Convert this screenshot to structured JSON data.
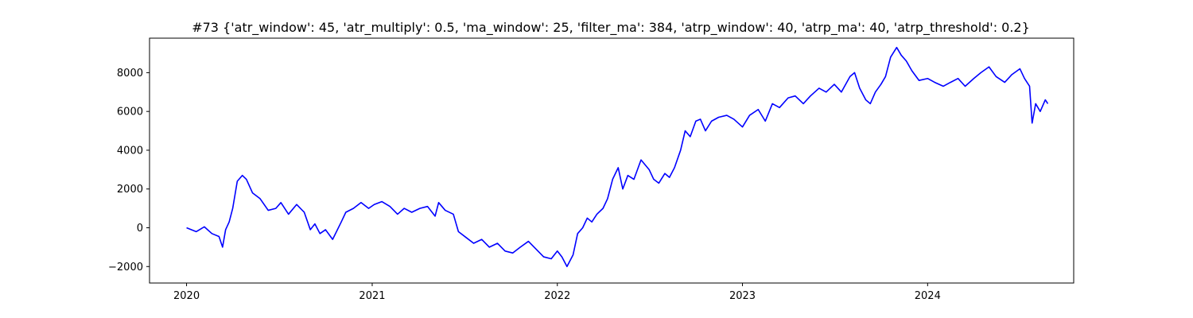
{
  "chart_data": {
    "type": "line",
    "title": "#73 {'atr_window': 45, 'atr_multiply': 0.5, 'ma_window': 25, 'filter_ma': 384, 'atrp_window': 40, 'atrp_ma': 40, 'atrp_threshold': 0.2}",
    "xlabel": "",
    "ylabel": "",
    "x_ticks": [
      "2020",
      "2021",
      "2022",
      "2023",
      "2024"
    ],
    "y_ticks": [
      -2000,
      0,
      2000,
      4000,
      6000,
      8000
    ],
    "y_tick_labels": [
      "−2000",
      "0",
      "2000",
      "4000",
      "6000",
      "8000"
    ],
    "xlim": [
      "2019-10-20",
      "2024-10-15"
    ],
    "ylim": [
      -2850,
      9780
    ],
    "grid": false,
    "series": [
      {
        "color": "#0000ff",
        "x": [
          "2020-01-01",
          "2020-01-20",
          "2020-02-05",
          "2020-02-20",
          "2020-03-05",
          "2020-03-12",
          "2020-03-18",
          "2020-03-25",
          "2020-04-01",
          "2020-04-10",
          "2020-04-20",
          "2020-04-28",
          "2020-05-10",
          "2020-05-25",
          "2020-06-10",
          "2020-06-25",
          "2020-07-05",
          "2020-07-20",
          "2020-08-05",
          "2020-08-20",
          "2020-09-01",
          "2020-09-10",
          "2020-09-20",
          "2020-10-01",
          "2020-10-15",
          "2020-11-01",
          "2020-11-10",
          "2020-11-25",
          "2020-12-10",
          "2020-12-25",
          "2021-01-05",
          "2021-01-20",
          "2021-02-05",
          "2021-02-20",
          "2021-03-05",
          "2021-03-20",
          "2021-04-05",
          "2021-04-20",
          "2021-05-05",
          "2021-05-12",
          "2021-05-25",
          "2021-06-10",
          "2021-06-20",
          "2021-07-05",
          "2021-07-20",
          "2021-08-05",
          "2021-08-20",
          "2021-09-05",
          "2021-09-20",
          "2021-10-05",
          "2021-10-20",
          "2021-11-05",
          "2021-11-20",
          "2021-12-05",
          "2021-12-20",
          "2022-01-01",
          "2022-01-10",
          "2022-01-20",
          "2022-02-01",
          "2022-02-10",
          "2022-02-20",
          "2022-03-01",
          "2022-03-10",
          "2022-03-20",
          "2022-04-01",
          "2022-04-10",
          "2022-04-20",
          "2022-05-01",
          "2022-05-10",
          "2022-05-20",
          "2022-06-01",
          "2022-06-15",
          "2022-07-01",
          "2022-07-10",
          "2022-07-20",
          "2022-08-01",
          "2022-08-10",
          "2022-08-20",
          "2022-09-01",
          "2022-09-10",
          "2022-09-20",
          "2022-10-01",
          "2022-10-10",
          "2022-10-20",
          "2022-11-01",
          "2022-11-15",
          "2022-12-01",
          "2022-12-15",
          "2023-01-01",
          "2023-01-15",
          "2023-02-01",
          "2023-02-15",
          "2023-03-01",
          "2023-03-15",
          "2023-04-01",
          "2023-04-15",
          "2023-05-01",
          "2023-05-15",
          "2023-06-01",
          "2023-06-15",
          "2023-07-01",
          "2023-07-15",
          "2023-08-01",
          "2023-08-10",
          "2023-08-20",
          "2023-09-01",
          "2023-09-10",
          "2023-09-20",
          "2023-10-01",
          "2023-10-10",
          "2023-10-20",
          "2023-11-01",
          "2023-11-10",
          "2023-11-20",
          "2023-12-01",
          "2023-12-15",
          "2024-01-01",
          "2024-01-15",
          "2024-02-01",
          "2024-02-15",
          "2024-03-01",
          "2024-03-15",
          "2024-04-01",
          "2024-04-15",
          "2024-05-01",
          "2024-05-15",
          "2024-06-01",
          "2024-06-15",
          "2024-07-01",
          "2024-07-10",
          "2024-07-20",
          "2024-07-25",
          "2024-08-01",
          "2024-08-10",
          "2024-08-20",
          "2024-08-25"
        ],
        "y": [
          0,
          -200,
          50,
          -300,
          -450,
          -1000,
          -100,
          300,
          1000,
          2400,
          2700,
          2500,
          1800,
          1500,
          900,
          1000,
          1300,
          700,
          1200,
          800,
          -100,
          200,
          -300,
          -100,
          -600,
          300,
          800,
          1000,
          1300,
          1000,
          1200,
          1350,
          1100,
          700,
          1000,
          800,
          1000,
          1100,
          600,
          1300,
          900,
          700,
          -200,
          -500,
          -800,
          -600,
          -1000,
          -800,
          -1200,
          -1300,
          -1000,
          -700,
          -1100,
          -1500,
          -1600,
          -1200,
          -1500,
          -2000,
          -1400,
          -300,
          0,
          500,
          300,
          700,
          1000,
          1500,
          2500,
          3100,
          2000,
          2700,
          2500,
          3500,
          3000,
          2500,
          2300,
          2800,
          2600,
          3100,
          4000,
          5000,
          4700,
          5500,
          5600,
          5000,
          5500,
          5700,
          5800,
          5600,
          5200,
          5800,
          6100,
          5500,
          6400,
          6200,
          6700,
          6800,
          6400,
          6800,
          7200,
          7000,
          7400,
          7000,
          7800,
          8000,
          7200,
          6600,
          6400,
          7000,
          7400,
          7800,
          8800,
          9300,
          8900,
          8600,
          8100,
          7600,
          7700,
          7500,
          7300,
          7500,
          7700,
          7300,
          7700,
          8000,
          8300,
          7800,
          7500,
          7900,
          8200,
          7700,
          7300,
          5400,
          6400,
          6000,
          6600,
          6400
        ]
      }
    ]
  }
}
